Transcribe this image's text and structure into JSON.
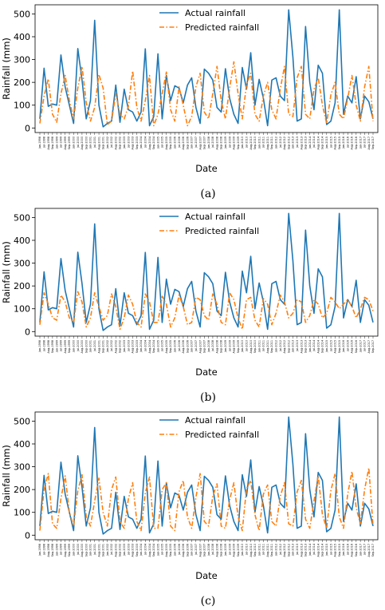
{
  "chart_data": [
    {
      "type": "line",
      "panel_label": "(a)",
      "xlabel": "Date",
      "ylabel": "Rainfall (mm)",
      "ylim": [
        -20,
        540
      ],
      "yticks": [
        0,
        100,
        200,
        300,
        400,
        500
      ],
      "legend_position": "top-center",
      "x": [
        "Jun-1998",
        "Jul-1998",
        "Aug-1998",
        "Sep-1998",
        "Jun-1999",
        "Jul-1999",
        "Aug-1999",
        "Sep-1999",
        "Jun-2000",
        "Jul-2000",
        "Aug-2000",
        "Sep-2000",
        "Jun-2001",
        "Jul-2001",
        "Aug-2001",
        "Sep-2001",
        "Jun-2002",
        "Jul-2002",
        "Aug-2002",
        "Sep-2002",
        "Jun-2003",
        "Jul-2003",
        "Aug-2003",
        "Sep-2003",
        "Jun-2004",
        "Jul-2004",
        "Aug-2004",
        "Sep-2004",
        "Jun-2005",
        "Jul-2005",
        "Aug-2005",
        "Sep-2005",
        "Jun-2006",
        "Jul-2006",
        "Aug-2006",
        "Sep-2006",
        "Jun-2007",
        "Jul-2007",
        "Aug-2007",
        "Sep-2007",
        "Jun-2008",
        "Jul-2008",
        "Aug-2008",
        "Sep-2008",
        "Jun-2009",
        "Jul-2009",
        "Aug-2009",
        "Sep-2009",
        "Jun-2010",
        "Jul-2010",
        "Aug-2010",
        "Sep-2010",
        "Jun-2011",
        "Jul-2011",
        "Aug-2011",
        "Sep-2011",
        "Jun-2012",
        "Jul-2012",
        "Aug-2012",
        "Sep-2012",
        "Jun-2013",
        "Jul-2013",
        "Aug-2013",
        "Sep-2013",
        "Jun-2014",
        "Jul-2014",
        "Aug-2014",
        "Sep-2014",
        "Jun-2015",
        "Jul-2015",
        "Aug-2015",
        "Sep-2015",
        "Jun-2016",
        "Jul-2016",
        "Aug-2016",
        "Sep-2016",
        "Jun-2017",
        "Jul-2017",
        "Aug-2017",
        "Sep-2017"
      ],
      "series": [
        {
          "name": "Actual rainfall",
          "color": "#1f77b4",
          "style": "solid",
          "values": [
            40,
            262,
            95,
            105,
            100,
            320,
            180,
            100,
            20,
            348,
            210,
            40,
            120,
            472,
            100,
            5,
            20,
            30,
            188,
            25,
            170,
            80,
            70,
            30,
            70,
            347,
            10,
            50,
            325,
            40,
            230,
            120,
            185,
            175,
            110,
            188,
            220,
            90,
            20,
            258,
            240,
            210,
            90,
            70,
            260,
            130,
            60,
            20,
            265,
            170,
            330,
            100,
            213,
            130,
            10,
            210,
            220,
            140,
            120,
            518,
            310,
            30,
            40,
            445,
            200,
            80,
            275,
            240,
            15,
            30,
            110,
            518,
            60,
            140,
            110,
            225,
            40,
            140,
            115,
            40
          ]
        },
        {
          "name": "Predicted rainfall",
          "color": "#ff7f0e",
          "style": "dashdot",
          "values": [
            20,
            140,
            215,
            60,
            25,
            150,
            230,
            120,
            40,
            175,
            270,
            110,
            30,
            90,
            235,
            175,
            15,
            30,
            150,
            60,
            40,
            95,
            250,
            90,
            30,
            120,
            230,
            10,
            60,
            150,
            245,
            80,
            30,
            180,
            100,
            10,
            50,
            180,
            240,
            70,
            40,
            150,
            270,
            120,
            40,
            175,
            290,
            150,
            40,
            190,
            240,
            60,
            30,
            140,
            200,
            80,
            40,
            170,
            270,
            60,
            50,
            220,
            270,
            60,
            40,
            170,
            220,
            100,
            20,
            145,
            200,
            60,
            40,
            130,
            230,
            100,
            30,
            180,
            270,
            30
          ]
        }
      ]
    },
    {
      "type": "line",
      "panel_label": "(b)",
      "xlabel": "Date",
      "ylabel": "Rainfall (mm)",
      "ylim": [
        -20,
        540
      ],
      "yticks": [
        0,
        100,
        200,
        300,
        400,
        500
      ],
      "legend_position": "top-center",
      "series": [
        {
          "name": "Actual rainfall",
          "color": "#1f77b4",
          "style": "solid",
          "values": [
            40,
            262,
            95,
            105,
            100,
            320,
            180,
            100,
            20,
            348,
            210,
            40,
            120,
            472,
            100,
            5,
            20,
            30,
            188,
            25,
            170,
            80,
            70,
            30,
            70,
            347,
            10,
            50,
            325,
            40,
            230,
            120,
            185,
            175,
            110,
            188,
            220,
            90,
            20,
            258,
            240,
            210,
            90,
            70,
            260,
            130,
            60,
            20,
            265,
            170,
            330,
            100,
            213,
            130,
            10,
            210,
            220,
            140,
            120,
            518,
            310,
            30,
            40,
            445,
            200,
            80,
            275,
            240,
            15,
            30,
            110,
            518,
            60,
            140,
            110,
            225,
            40,
            140,
            115,
            40
          ]
        },
        {
          "name": "Predicted rainfall",
          "color": "#ff7f0e",
          "style": "dashdot",
          "values": [
            30,
            170,
            120,
            60,
            50,
            160,
            130,
            60,
            40,
            175,
            130,
            20,
            60,
            170,
            110,
            50,
            70,
            165,
            110,
            10,
            60,
            160,
            120,
            40,
            20,
            165,
            130,
            40,
            40,
            155,
            120,
            20,
            60,
            160,
            110,
            30,
            40,
            150,
            140,
            70,
            50,
            165,
            120,
            40,
            30,
            170,
            140,
            60,
            10,
            140,
            150,
            50,
            20,
            145,
            120,
            30,
            80,
            160,
            130,
            60,
            80,
            140,
            130,
            40,
            70,
            140,
            120,
            60,
            80,
            150,
            130,
            100,
            120,
            140,
            110,
            60,
            100,
            150,
            140,
            90
          ]
        }
      ]
    },
    {
      "type": "line",
      "panel_label": "(c)",
      "xlabel": "Date",
      "ylabel": "Rainfall (mm)",
      "ylim": [
        -20,
        540
      ],
      "yticks": [
        0,
        100,
        200,
        300,
        400,
        500
      ],
      "legend_position": "top-center",
      "series": [
        {
          "name": "Actual rainfall",
          "color": "#1f77b4",
          "style": "solid",
          "values": [
            40,
            262,
            95,
            105,
            100,
            320,
            180,
            100,
            20,
            348,
            210,
            40,
            120,
            472,
            100,
            5,
            20,
            30,
            188,
            25,
            170,
            80,
            70,
            30,
            70,
            347,
            10,
            50,
            325,
            40,
            230,
            120,
            185,
            175,
            110,
            188,
            220,
            90,
            20,
            258,
            240,
            210,
            90,
            70,
            260,
            130,
            60,
            20,
            265,
            170,
            330,
            100,
            213,
            130,
            10,
            210,
            220,
            140,
            120,
            518,
            310,
            30,
            40,
            445,
            200,
            80,
            275,
            240,
            15,
            30,
            110,
            518,
            60,
            140,
            110,
            225,
            40,
            140,
            115,
            40
          ]
        },
        {
          "name": "Predicted rainfall",
          "color": "#ff7f0e",
          "style": "dashdot",
          "values": [
            20,
            200,
            270,
            50,
            30,
            160,
            260,
            100,
            40,
            195,
            265,
            80,
            40,
            150,
            250,
            100,
            40,
            200,
            255,
            60,
            30,
            160,
            230,
            60,
            20,
            185,
            255,
            30,
            30,
            200,
            230,
            40,
            20,
            190,
            240,
            80,
            30,
            165,
            270,
            60,
            40,
            170,
            225,
            40,
            30,
            155,
            230,
            80,
            20,
            205,
            240,
            90,
            20,
            180,
            220,
            60,
            40,
            170,
            230,
            50,
            40,
            190,
            240,
            70,
            30,
            150,
            260,
            90,
            30,
            195,
            270,
            80,
            30,
            180,
            280,
            120,
            50,
            200,
            295,
            40
          ]
        }
      ]
    }
  ]
}
